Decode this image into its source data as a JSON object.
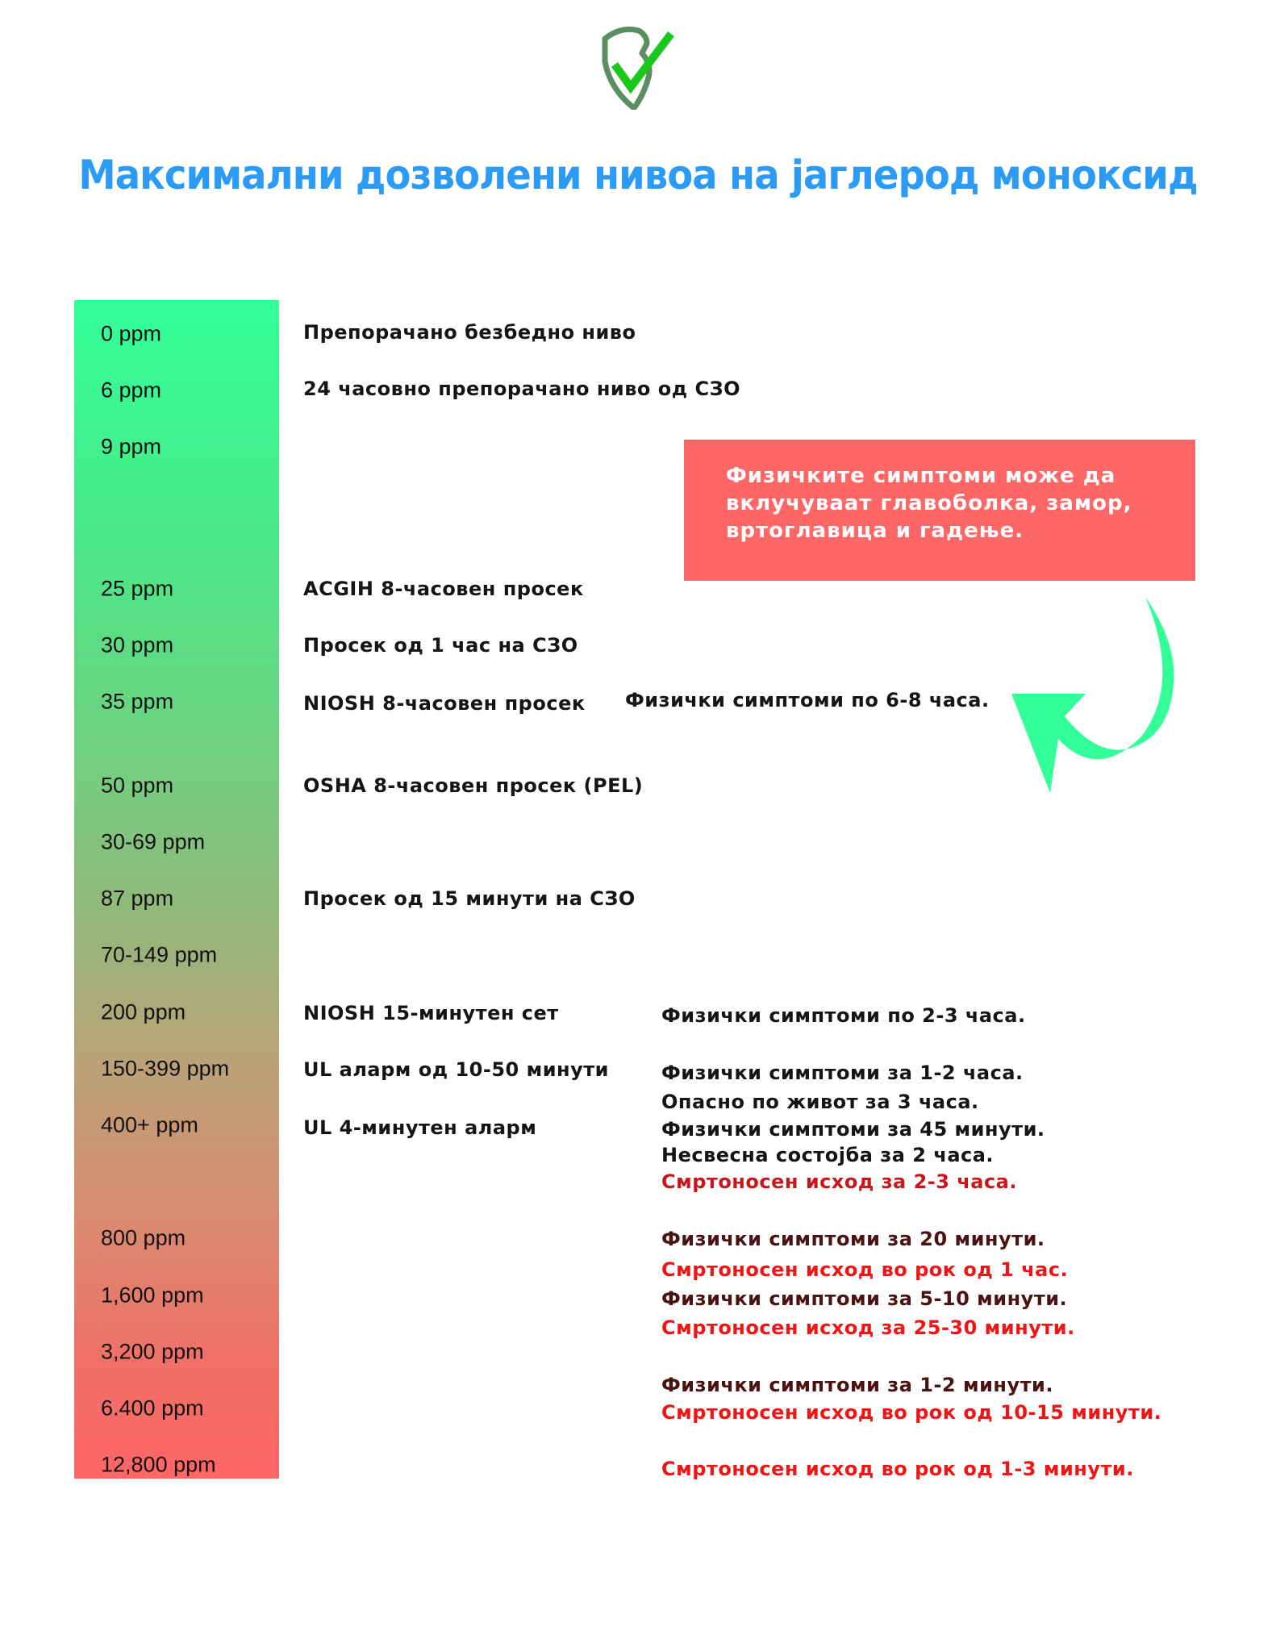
{
  "header": {
    "logo_icon": "shield-check-icon",
    "title": "Максимални дозволени нивоа на јаглерод моноксид"
  },
  "colors": {
    "title": "#2b9bf5",
    "gradient_top": "#33ff99",
    "gradient_bottom": "#ff6666",
    "callout": "#ff6666",
    "arrow": "#33ff99",
    "fatal": "#f01414",
    "symptom_dark": "#4a1212"
  },
  "levels": [
    "0 ppm",
    "6 ppm",
    "9 ppm",
    "25 ppm",
    "30 ppm",
    "35 ppm",
    "50 ppm",
    "30-69 ppm",
    "87 ppm",
    "70-149 ppm",
    "200 ppm",
    "150-399 ppm",
    "400+ ppm",
    "800 ppm",
    "1,600 ppm",
    "3,200 ppm",
    "6.400 ppm",
    "12,800 ppm"
  ],
  "descriptions": [
    "Препорачано безбедно ниво",
    "24 часовно препорачано ниво од СЗО",
    "ACGIH 8-часовен просек",
    "Просек од 1 час на СЗО",
    "NIOSH 8-часовен просек",
    "OSHA 8-часовен просек (PEL)",
    "Просек од 15 минути на СЗО",
    "NIOSH 15-минутен сет",
    "UL аларм од 10-50 минути",
    "UL 4-минутен аларм"
  ],
  "callout": {
    "text": "Физичките симптоми може да вклучуваат главоболка, замор, вртоглавица и гадење.",
    "arrow_icon": "curved-arrow-icon"
  },
  "symptom_35": "Физички симптоми по 6-8 часа.",
  "symptoms": [
    "Физички симптоми по 2-3 часа.",
    "Физички симптоми за 1-2 часа.",
    "Опасно по живот за 3 часа.",
    "Физички симптоми за 45 минути.",
    "Несвесна состојба за 2 часа.",
    "Смртоносен исход за 2-3 часа.",
    "Физички симптоми за 20 минути.",
    "Смртоносен исход во рок од 1 час.",
    "Физички симптоми за 5-10 минути.",
    "Смртоносен исход за 25-30 минути.",
    "Физички симптоми за 1-2 минути.",
    "Смртоносен исход во рок од 10-15 минути.",
    "Смртоносен исход во рок од 1-3 минути."
  ]
}
